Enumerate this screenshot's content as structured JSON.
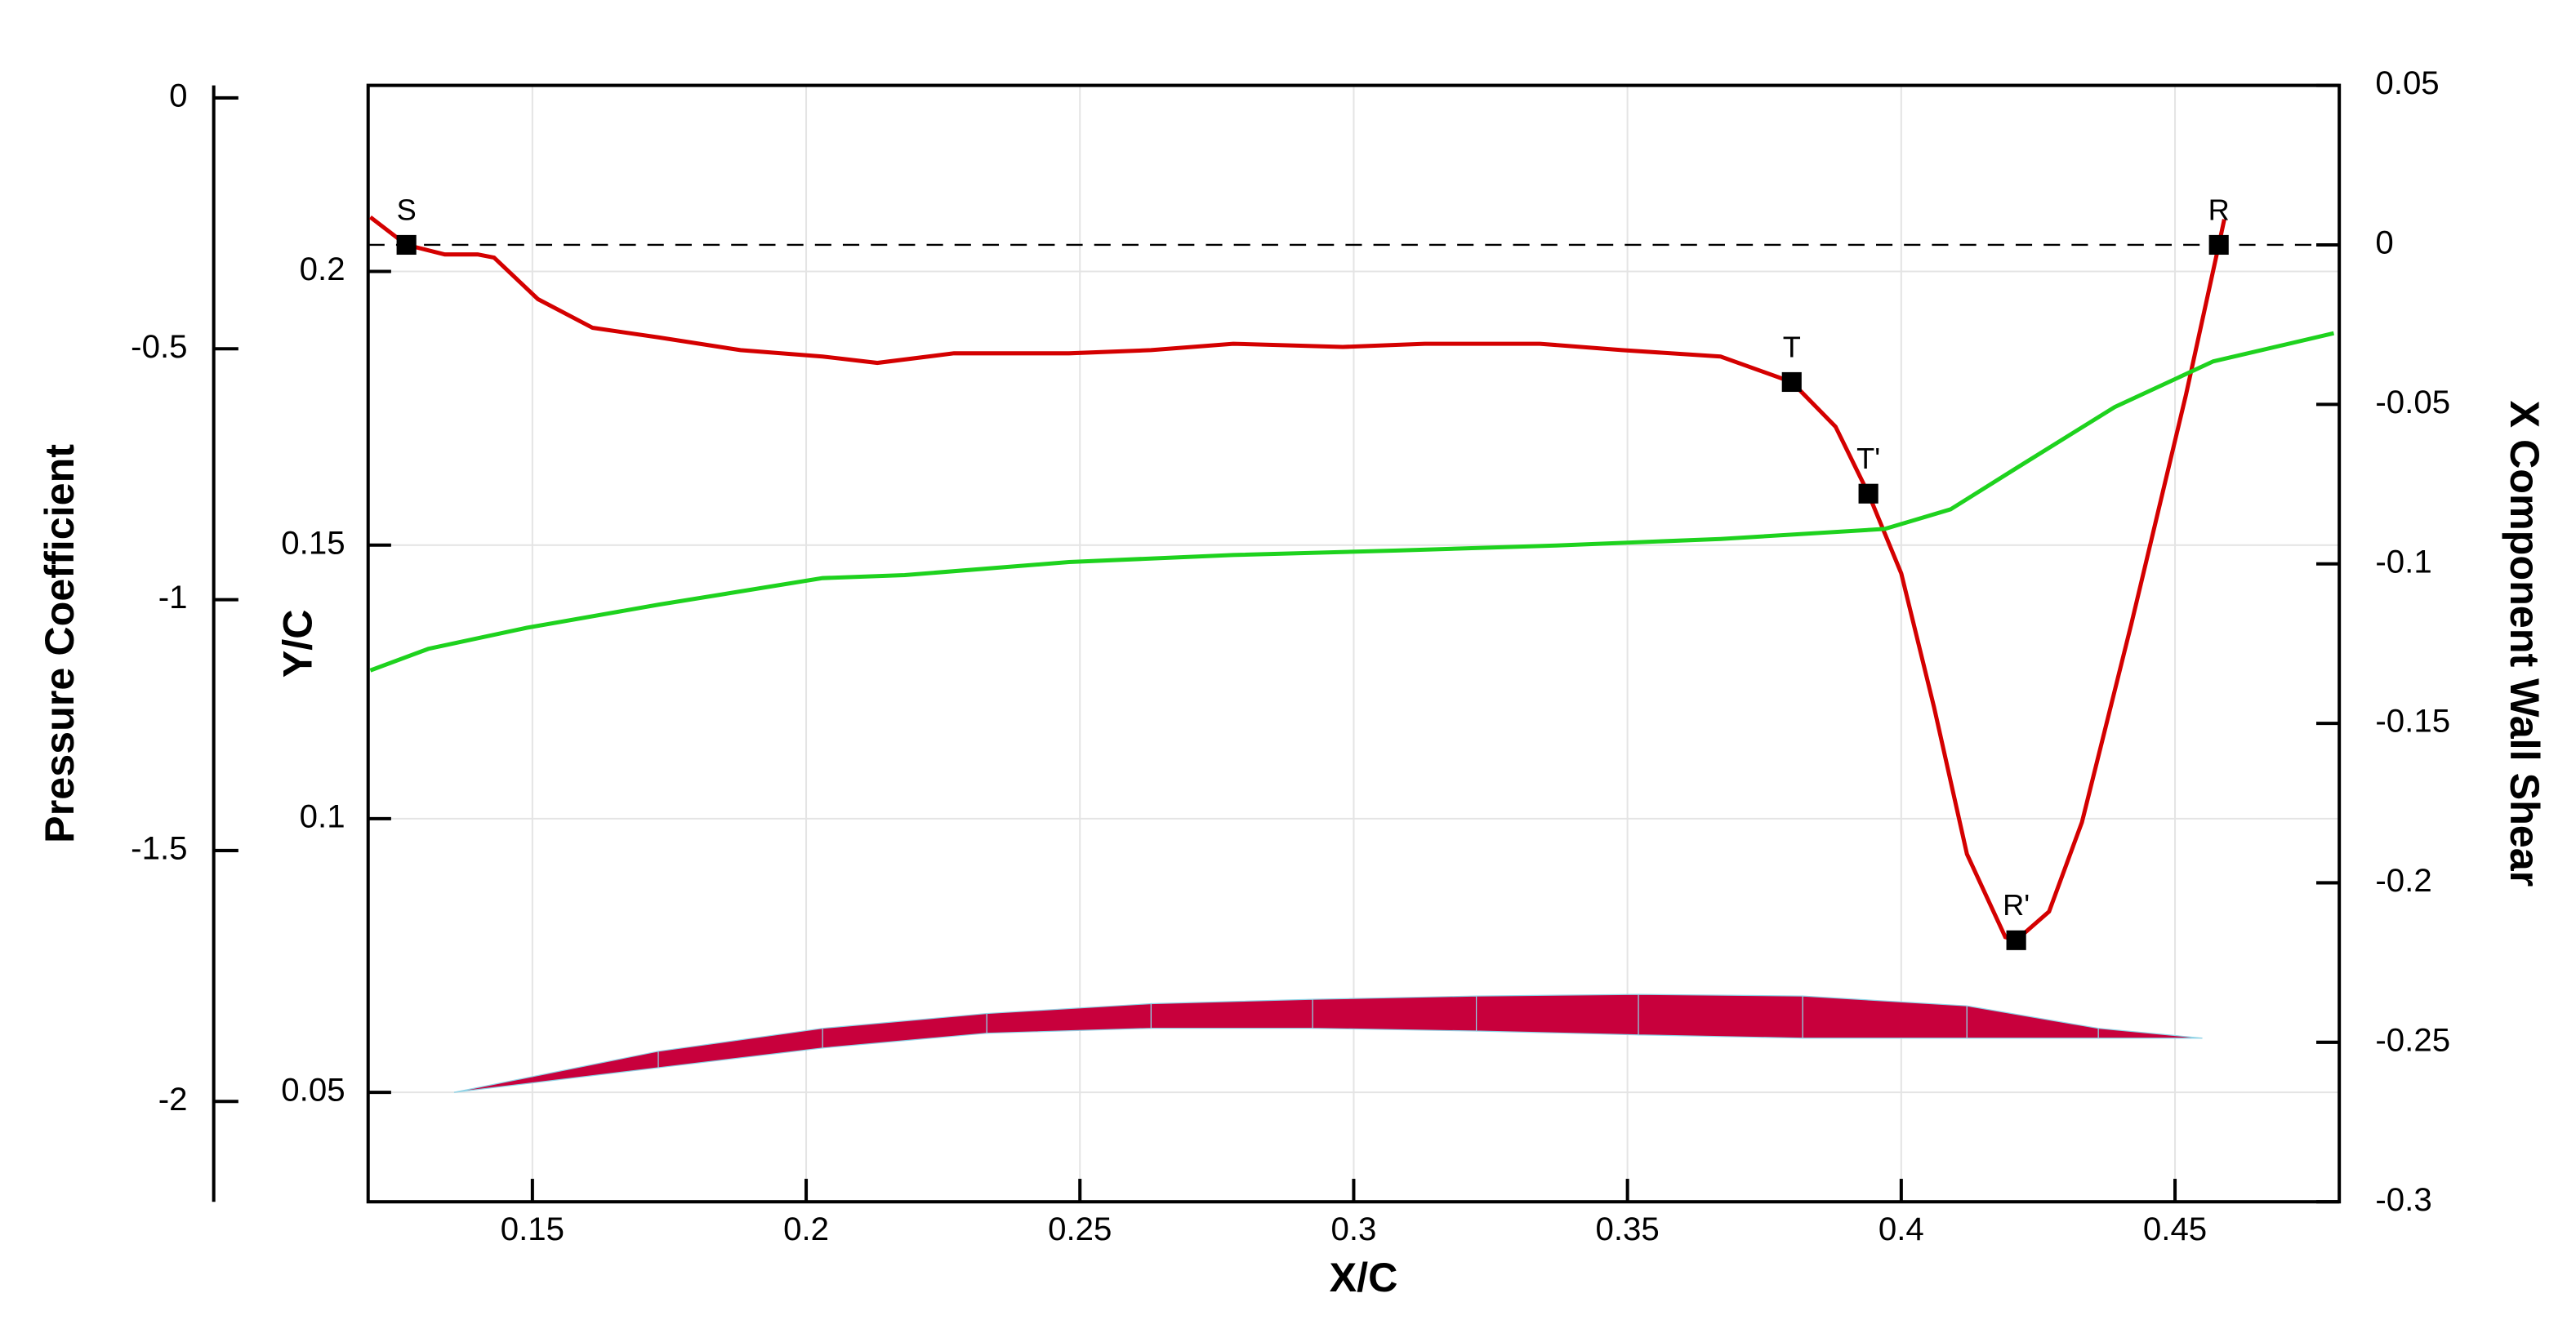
{
  "chart_data": {
    "type": "line",
    "xlabel": "X/C",
    "xlim": [
      0.12,
      0.48
    ],
    "xticks": [
      0.15,
      0.2,
      0.25,
      0.3,
      0.35,
      0.4,
      0.45
    ],
    "grid": true,
    "axes": {
      "cp": {
        "label": "Pressure Coefficient",
        "lim": [
          -2.2,
          0.025
        ],
        "ticks": [
          0,
          -0.5,
          -1,
          -1.5,
          -2
        ]
      },
      "yc": {
        "label": "Y/C",
        "lim": [
          0.03,
          0.234
        ],
        "ticks": [
          0.2,
          0.15,
          0.1,
          0.05
        ]
      },
      "y2": {
        "label": "X Component Wall Shear",
        "lim": [
          -0.3,
          0.05
        ],
        "ticks": [
          0.05,
          0,
          -0.05,
          -0.1,
          -0.15,
          -0.2,
          -0.25,
          -0.3
        ]
      }
    },
    "series": [
      {
        "type": "line",
        "axis": "y2",
        "color": "#d40000",
        "x": [
          0.1204,
          0.127,
          0.134,
          0.14,
          0.143,
          0.151,
          0.161,
          0.173,
          0.188,
          0.203,
          0.213,
          0.227,
          0.248,
          0.263,
          0.278,
          0.298,
          0.313,
          0.334,
          0.349,
          0.367,
          0.38,
          0.388,
          0.394,
          0.4,
          0.406,
          0.412,
          0.419,
          0.421,
          0.427,
          0.433,
          0.442,
          0.452,
          0.458,
          0.459
        ],
        "values": [
          0.0087,
          0,
          -0.003,
          -0.003,
          -0.004,
          -0.017,
          -0.026,
          -0.029,
          -0.033,
          -0.035,
          -0.037,
          -0.034,
          -0.034,
          -0.033,
          -0.031,
          -0.032,
          -0.031,
          -0.031,
          -0.033,
          -0.035,
          -0.043,
          -0.057,
          -0.078,
          -0.103,
          -0.145,
          -0.191,
          -0.217,
          -0.218,
          -0.209,
          -0.181,
          -0.119,
          -0.047,
          0,
          0.008
        ]
      },
      {
        "type": "line",
        "axis": "cp",
        "color": "#1ed21e",
        "x": [
          0.1204,
          0.131,
          0.149,
          0.173,
          0.203,
          0.218,
          0.248,
          0.278,
          0.308,
          0.337,
          0.367,
          0.397,
          0.409,
          0.421,
          0.439,
          0.457,
          0.479
        ],
        "values": [
          -1.141,
          -1.098,
          -1.056,
          -1.01,
          -0.957,
          -0.951,
          -0.925,
          -0.911,
          -0.902,
          -0.892,
          -0.879,
          -0.859,
          -0.82,
          -0.738,
          -0.616,
          -0.525,
          -0.469
        ]
      },
      {
        "type": "band",
        "axis": "yc",
        "color": "#c8003c",
        "x": [
          0.1357,
          0.173,
          0.203,
          0.233,
          0.263,
          0.2925,
          0.3224,
          0.352,
          0.382,
          0.412,
          0.436,
          0.455
        ],
        "values": [
          0.05,
          0.0575,
          0.0617,
          0.0644,
          0.0662,
          0.067,
          0.0676,
          0.0679,
          0.0676,
          0.0658,
          0.0617,
          0.0599
        ],
        "lower": [
          0.05,
          0.0545,
          0.0581,
          0.0608,
          0.0617,
          0.0617,
          0.0612,
          0.0605,
          0.0599,
          0.0599,
          0.0599,
          0.0599
        ]
      }
    ],
    "markers": {
      "axis": "y2",
      "labels": [
        "S",
        "T",
        "T'",
        "R'",
        "R"
      ],
      "x": [
        0.127,
        0.38,
        0.394,
        0.421,
        0.458
      ],
      "values": [
        0,
        -0.043,
        -0.078,
        -0.218,
        0
      ]
    },
    "reference_line": {
      "axis": "y2",
      "value": 0
    }
  }
}
